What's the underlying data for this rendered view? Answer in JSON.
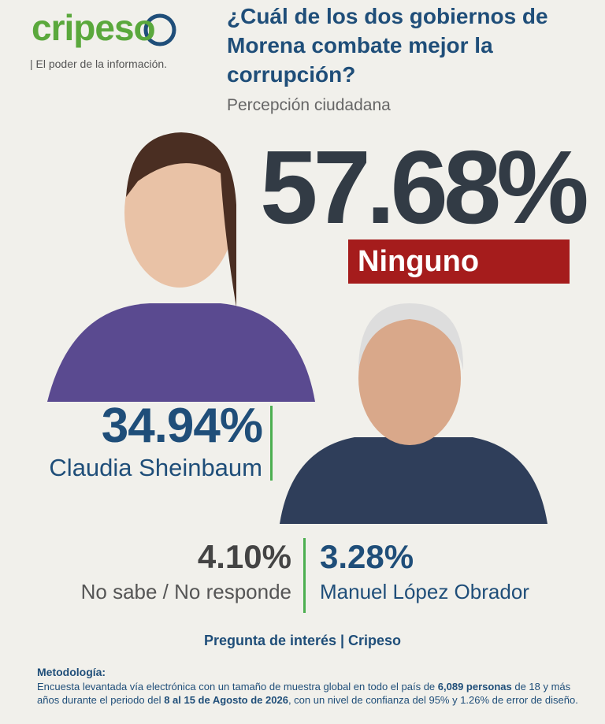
{
  "header": {
    "logo": "cripeso",
    "tagline": "| El poder de la información.",
    "title": "¿Cuál de los dos gobiernos de Morena combate mejor la corrupción?",
    "subtitle": "Percepción ciudadana"
  },
  "results": [
    {
      "value": "57.68%",
      "label": "Ninguno"
    },
    {
      "value": "34.94%",
      "label": "Claudia Sheinbaum"
    },
    {
      "value": "4.10%",
      "label": "No sabe / No responde"
    },
    {
      "value": "3.28%",
      "label": "Manuel López Obrador"
    }
  ],
  "footer": {
    "source": "Pregunta de interés | Cripeso",
    "methodology_title": "Metodología:",
    "methodology": [
      "Encuesta levantada vía electrónica con un tamaño de muestra global en todo el país de ",
      "6,089 personas",
      " de 18 y más años durante el periodo del ",
      "8 al 15 de Agosto de 2026",
      ", con un nivel de confianza del 95% y 1.26% de error de diseño."
    ]
  }
}
